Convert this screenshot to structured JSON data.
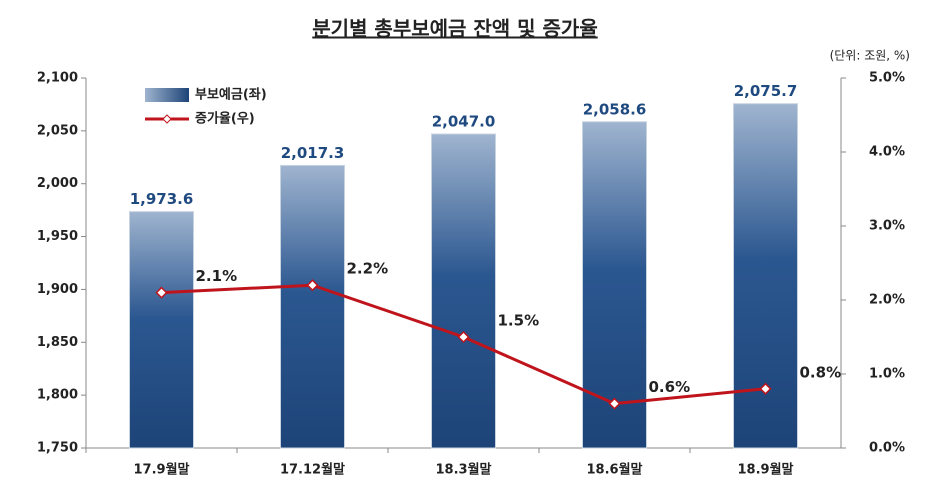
{
  "chart_data": {
    "type": "bar",
    "title": "분기별 총부보예금 잔액 및 증가율",
    "subtitle": "(단위: 조원, %)",
    "categories": [
      "17.9월말",
      "17.12월말",
      "18.3월말",
      "18.6월말",
      "18.9월말"
    ],
    "series": [
      {
        "name": "부보예금(좌)",
        "type": "bar",
        "color": "#1f4a80",
        "values": [
          1973.6,
          2017.3,
          2047.0,
          2058.6,
          2075.7
        ],
        "value_labels": [
          "1,973.6",
          "2,017.3",
          "2,047.0",
          "2,058.6",
          "2,075.7"
        ]
      },
      {
        "name": "증가율(우)",
        "type": "line",
        "axis": "y2",
        "color": "#c0141c",
        "values": [
          2.1,
          2.2,
          1.5,
          0.6,
          0.8
        ],
        "value_labels": [
          "2.1%",
          "2.2%",
          "1.5%",
          "0.6%",
          "0.8%"
        ]
      }
    ],
    "ylim": [
      1750,
      2100
    ],
    "yticks": [
      {
        "value": 1750,
        "label": "1,750"
      },
      {
        "value": 1800,
        "label": "1,800"
      },
      {
        "value": 1850,
        "label": "1,850"
      },
      {
        "value": 1900,
        "label": "1,900"
      },
      {
        "value": 1950,
        "label": "1,950"
      },
      {
        "value": 2000,
        "label": "2,000"
      },
      {
        "value": 2050,
        "label": "2,050"
      },
      {
        "value": 2100,
        "label": "2,100"
      }
    ],
    "y2lim": [
      0,
      5
    ],
    "y2ticks": [
      {
        "value": 0,
        "label": "0.0%"
      },
      {
        "value": 1,
        "label": "1.0%"
      },
      {
        "value": 2,
        "label": "2.0%"
      },
      {
        "value": 3,
        "label": "3.0%"
      },
      {
        "value": 4,
        "label": "4.0%"
      },
      {
        "value": 5,
        "label": "5.0%"
      }
    ],
    "grid": false,
    "legend": "top-left"
  }
}
